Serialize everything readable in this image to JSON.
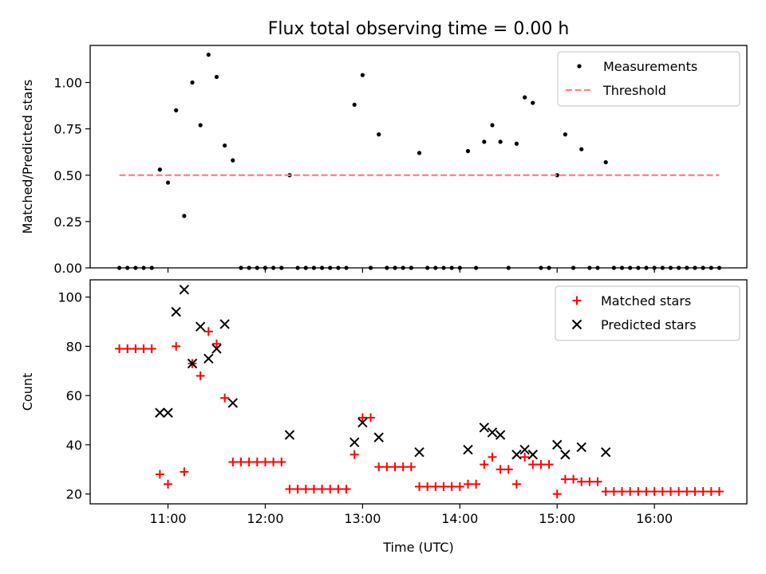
{
  "title": "Flux total observing time = 0.00 h",
  "chart_data": [
    {
      "type": "scatter",
      "ylabel": "Matched/Predicted stars",
      "xlim": [
        "10:12",
        "16:57"
      ],
      "ylim": [
        0,
        1.2
      ],
      "xticks": [
        "11:00",
        "12:00",
        "13:00",
        "14:00",
        "15:00",
        "16:00"
      ],
      "yticks": [
        "0.00",
        "0.25",
        "0.50",
        "0.75",
        "1.00"
      ],
      "legend_position": "upper-right",
      "legend": [
        "Measurements",
        "Threshold"
      ],
      "series": [
        {
          "name": "Measurements",
          "marker": "dot",
          "color": "#000000",
          "x": [
            "10:30",
            "10:35",
            "10:40",
            "10:45",
            "10:50",
            "10:55",
            "11:00",
            "11:05",
            "11:10",
            "11:15",
            "11:20",
            "11:25",
            "11:30",
            "11:35",
            "11:40",
            "11:45",
            "11:50",
            "11:55",
            "12:00",
            "12:05",
            "12:10",
            "12:15",
            "12:20",
            "12:25",
            "12:30",
            "12:35",
            "12:40",
            "12:45",
            "12:50",
            "12:55",
            "13:00",
            "13:05",
            "13:10",
            "13:15",
            "13:20",
            "13:25",
            "13:30",
            "13:35",
            "13:40",
            "13:45",
            "13:50",
            "13:55",
            "14:00",
            "14:05",
            "14:10",
            "14:15",
            "14:20",
            "14:25",
            "14:30",
            "14:35",
            "14:40",
            "14:45",
            "14:50",
            "14:55",
            "15:00",
            "15:05",
            "15:10",
            "15:15",
            "15:20",
            "15:25",
            "15:30",
            "15:35",
            "15:40",
            "15:45",
            "15:50",
            "15:55",
            "16:00",
            "16:05",
            "16:10",
            "16:15",
            "16:20",
            "16:25",
            "16:30",
            "16:35",
            "16:40"
          ],
          "y": [
            0,
            0,
            0,
            0,
            0,
            0.53,
            0.46,
            0.85,
            0.28,
            1.0,
            0.77,
            1.15,
            1.03,
            0.66,
            0.58,
            0,
            0,
            0,
            0,
            0,
            0,
            0.5,
            0,
            0,
            0,
            0,
            0,
            0,
            0,
            0.88,
            1.04,
            0,
            0.72,
            0,
            0,
            0,
            0,
            0.62,
            0,
            0,
            0,
            0,
            0,
            0.63,
            0,
            0.68,
            0.77,
            0.68,
            0,
            0.67,
            0.92,
            0.89,
            0,
            0,
            0.5,
            0.72,
            0,
            0.64,
            0,
            0,
            0.57,
            0,
            0,
            0,
            0,
            0,
            0,
            0,
            0,
            0,
            0,
            0,
            0,
            0,
            0
          ]
        },
        {
          "name": "Threshold",
          "style": "dashed",
          "color": "#ff8080",
          "x": [
            "10:30",
            "16:40"
          ],
          "y": [
            0.5,
            0.5
          ]
        }
      ]
    },
    {
      "type": "scatter",
      "ylabel": "Count",
      "xlabel": "Time (UTC)",
      "xlim": [
        "10:12",
        "16:57"
      ],
      "ylim": [
        16,
        107
      ],
      "xticks": [
        "11:00",
        "12:00",
        "13:00",
        "14:00",
        "15:00",
        "16:00"
      ],
      "yticks": [
        "20",
        "40",
        "60",
        "80",
        "100"
      ],
      "legend_position": "upper-right",
      "legend": [
        "Matched stars",
        "Predicted stars"
      ],
      "series": [
        {
          "name": "Matched stars",
          "marker": "plus",
          "color": "#ff0000",
          "x": [
            "10:30",
            "10:35",
            "10:40",
            "10:45",
            "10:50",
            "10:55",
            "11:00",
            "11:05",
            "11:10",
            "11:15",
            "11:20",
            "11:25",
            "11:30",
            "11:35",
            "11:40",
            "11:45",
            "11:50",
            "11:55",
            "12:00",
            "12:05",
            "12:10",
            "12:15",
            "12:20",
            "12:25",
            "12:30",
            "12:35",
            "12:40",
            "12:45",
            "12:50",
            "12:55",
            "13:00",
            "13:05",
            "13:10",
            "13:15",
            "13:20",
            "13:25",
            "13:30",
            "13:35",
            "13:40",
            "13:45",
            "13:50",
            "13:55",
            "14:00",
            "14:05",
            "14:10",
            "14:15",
            "14:20",
            "14:25",
            "14:30",
            "14:35",
            "14:40",
            "14:45",
            "14:50",
            "14:55",
            "15:00",
            "15:05",
            "15:10",
            "15:15",
            "15:20",
            "15:25",
            "15:30",
            "15:35",
            "15:40",
            "15:45",
            "15:50",
            "15:55",
            "16:00",
            "16:05",
            "16:10",
            "16:15",
            "16:20",
            "16:25",
            "16:30",
            "16:35",
            "16:40"
          ],
          "y": [
            79,
            79,
            79,
            79,
            79,
            28,
            24,
            80,
            29,
            73,
            68,
            86,
            81,
            59,
            33,
            33,
            33,
            33,
            33,
            33,
            33,
            22,
            22,
            22,
            22,
            22,
            22,
            22,
            22,
            36,
            51,
            51,
            31,
            31,
            31,
            31,
            31,
            23,
            23,
            23,
            23,
            23,
            23,
            24,
            24,
            32,
            35,
            30,
            30,
            24,
            35,
            32,
            32,
            32,
            20,
            26,
            26,
            25,
            25,
            25,
            21,
            21,
            21,
            21,
            21,
            21,
            21,
            21,
            21,
            21,
            21,
            21,
            21,
            21,
            21
          ]
        },
        {
          "name": "Predicted stars",
          "marker": "x",
          "color": "#000000",
          "x": [
            "10:55",
            "11:00",
            "11:05",
            "11:10",
            "11:15",
            "11:20",
            "11:25",
            "11:30",
            "11:35",
            "11:40",
            "12:15",
            "12:55",
            "13:00",
            "13:10",
            "13:35",
            "14:05",
            "14:15",
            "14:20",
            "14:25",
            "14:35",
            "14:40",
            "14:45",
            "15:00",
            "15:05",
            "15:15",
            "15:30"
          ],
          "y": [
            53,
            53,
            94,
            103,
            73,
            88,
            75,
            79,
            89,
            57,
            44,
            41,
            49,
            43,
            37,
            38,
            47,
            45,
            44,
            36,
            38,
            36,
            40,
            36,
            39,
            37
          ]
        }
      ]
    }
  ]
}
